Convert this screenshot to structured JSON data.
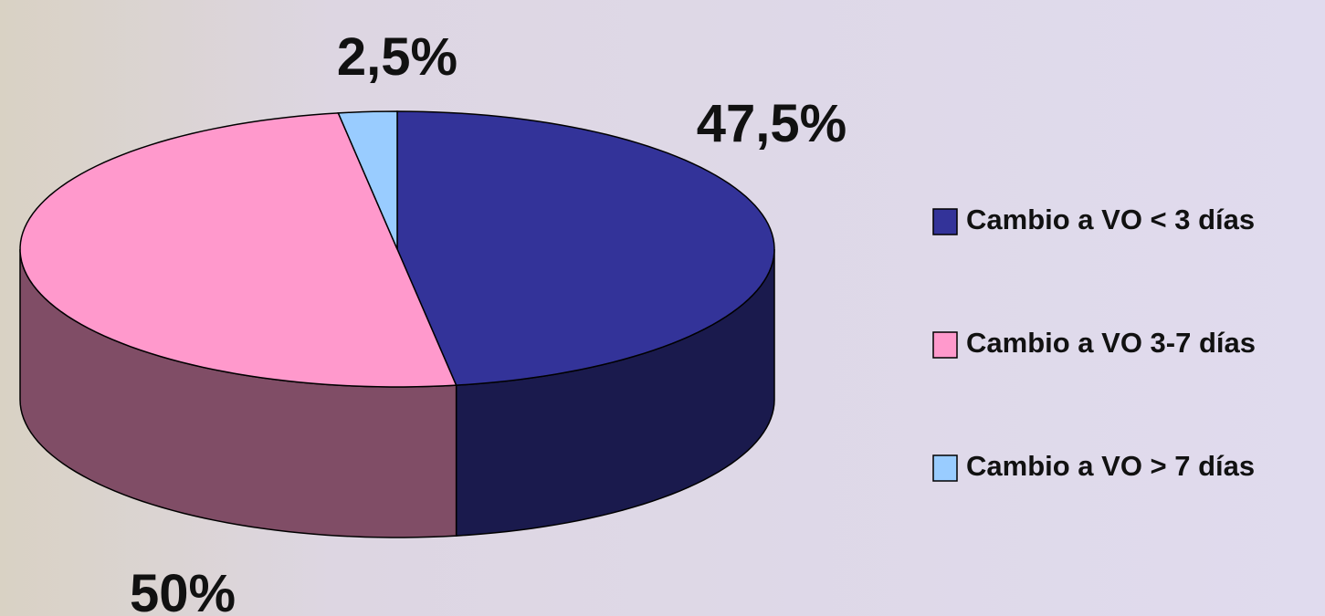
{
  "chart_data": {
    "type": "pie3d",
    "categories": [
      "Cambio a VO < 3 días",
      "Cambio a VO 3-7 días",
      "Cambio a VO > 7 días"
    ],
    "values": [
      47.5,
      50,
      2.5
    ],
    "value_labels": [
      "47,5%",
      "50%",
      "2,5%"
    ],
    "colors": [
      "#333399",
      "#ff99cc",
      "#99ccff"
    ],
    "legend": "right"
  }
}
